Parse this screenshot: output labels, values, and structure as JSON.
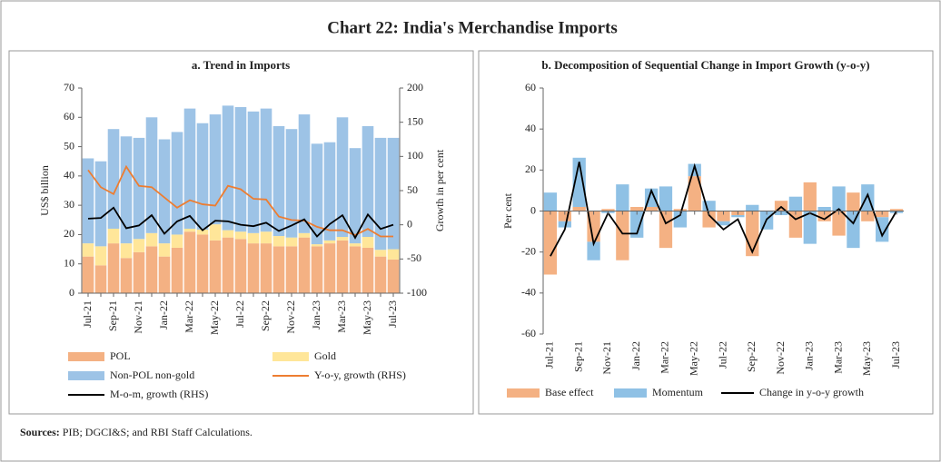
{
  "title": "Chart 22: India's Merchandise Imports",
  "source": {
    "label": "Sources:",
    "text": "PIB; DGCI&S; and RBI Staff Calculations."
  },
  "chart_data": [
    {
      "type": "combo",
      "title": "a. Trend in Imports",
      "ylabel": "US$ billion",
      "y2label": "Growth in per cent",
      "stacked": true,
      "categories": [
        "Jul-21",
        null,
        "Sep-21",
        null,
        "Nov-21",
        null,
        "Jan-22",
        null,
        "Mar-22",
        null,
        "May-22",
        null,
        "Jul-22",
        null,
        "Sep-22",
        null,
        "Nov-22",
        null,
        "Jan-23",
        null,
        "Mar-23",
        null,
        "May-23",
        null,
        "Jul-23"
      ],
      "ylim": [
        0,
        70
      ],
      "yticks": [
        0,
        10,
        20,
        30,
        40,
        50,
        60,
        70
      ],
      "y2lim": [
        -100,
        200
      ],
      "y2ticks": [
        -100,
        -50,
        0,
        50,
        100,
        150,
        200
      ],
      "series": [
        {
          "name": "POL",
          "type": "bar",
          "color": "#f4b183",
          "values": [
            12.5,
            9.5,
            17,
            12,
            14,
            16,
            12.5,
            15.5,
            21,
            20,
            18,
            19,
            18.5,
            17,
            17,
            16,
            16,
            19,
            16,
            17,
            18,
            16,
            15.5,
            12.5,
            11.5
          ]
        },
        {
          "name": "Gold",
          "type": "bar",
          "color": "#ffe699",
          "values": [
            4.5,
            6.5,
            5,
            5,
            4.5,
            4.5,
            4.5,
            4.5,
            1,
            1.7,
            5.5,
            2.5,
            2.5,
            3.5,
            4,
            3.5,
            3,
            1.5,
            0.7,
            1,
            1.2,
            1,
            3.7,
            2.3,
            3.5
          ]
        },
        {
          "name": "Non-POL non-gold",
          "type": "bar",
          "color": "#9dc3e6",
          "values": [
            29,
            29,
            34,
            36.5,
            34.5,
            39.5,
            35.5,
            35,
            41,
            36.3,
            37.5,
            42.5,
            42.5,
            41.5,
            42,
            37.5,
            37,
            40.5,
            34.3,
            33.5,
            40.8,
            32.5,
            37.8,
            38.2,
            38
          ]
        },
        {
          "name": "Y-o-y, growth (RHS)",
          "type": "line",
          "axis": "y2",
          "color": "#ed7d31",
          "values": [
            80,
            55,
            45,
            85,
            57,
            55,
            40,
            25,
            36,
            30,
            28,
            57,
            52,
            38,
            37,
            12,
            7,
            6,
            -3,
            -8,
            -8,
            -15,
            -6,
            -17,
            -17
          ]
        },
        {
          "name": "M-o-m, growth (RHS)",
          "type": "line",
          "axis": "y2",
          "color": "#000000",
          "values": [
            9,
            10,
            25,
            -5,
            -1,
            14,
            -13,
            5,
            13,
            -8,
            6,
            5,
            0,
            -2,
            3,
            -9,
            -1,
            8,
            -17,
            1,
            14,
            -19,
            15,
            -6,
            0
          ]
        }
      ]
    },
    {
      "type": "combo",
      "title": "b. Decomposition of Sequential Change in Import Growth (y-o-y)",
      "ylabel": "Per cent",
      "stacked": true,
      "categories": [
        "Jul-21",
        null,
        "Sep-21",
        null,
        "Nov-21",
        null,
        "Jan-22",
        null,
        "Mar-22",
        null,
        "May-22",
        null,
        "Jul-22",
        null,
        "Sep-22",
        null,
        "Nov-22",
        null,
        "Jan-23",
        null,
        "Mar-23",
        null,
        "May-23",
        null,
        "Jul-23"
      ],
      "ylim": [
        -60,
        60
      ],
      "yticks": [
        -60,
        -40,
        -20,
        0,
        20,
        40,
        60
      ],
      "series": [
        {
          "name": "Base effect",
          "type": "bar",
          "color": "#f4b183",
          "values": [
            -31,
            -5,
            2,
            -15,
            1,
            -24,
            2,
            2,
            -18,
            1,
            17,
            -8,
            -5,
            -2,
            -22,
            0,
            5,
            -13,
            14,
            -5,
            -12,
            9,
            -5,
            -3,
            1
          ]
        },
        {
          "name": "Momentum",
          "type": "bar",
          "color": "#8fc1e5",
          "values": [
            9,
            -3,
            24,
            -9,
            -1,
            13,
            -13,
            9,
            12,
            -8,
            6,
            5,
            -2,
            -1,
            3,
            -9,
            -2,
            7,
            -16,
            2,
            12,
            -18,
            13,
            -12,
            -1
          ]
        },
        {
          "name": "Change in y-o-y growth",
          "type": "line",
          "color": "#000000",
          "values": [
            -22,
            -9,
            24,
            -16,
            -1,
            -11,
            -11,
            10,
            -6,
            -2,
            22,
            -2,
            -9,
            -4,
            -20,
            -4,
            2,
            -4,
            -1,
            -4,
            1,
            -6,
            8,
            -12,
            0
          ]
        }
      ]
    }
  ]
}
